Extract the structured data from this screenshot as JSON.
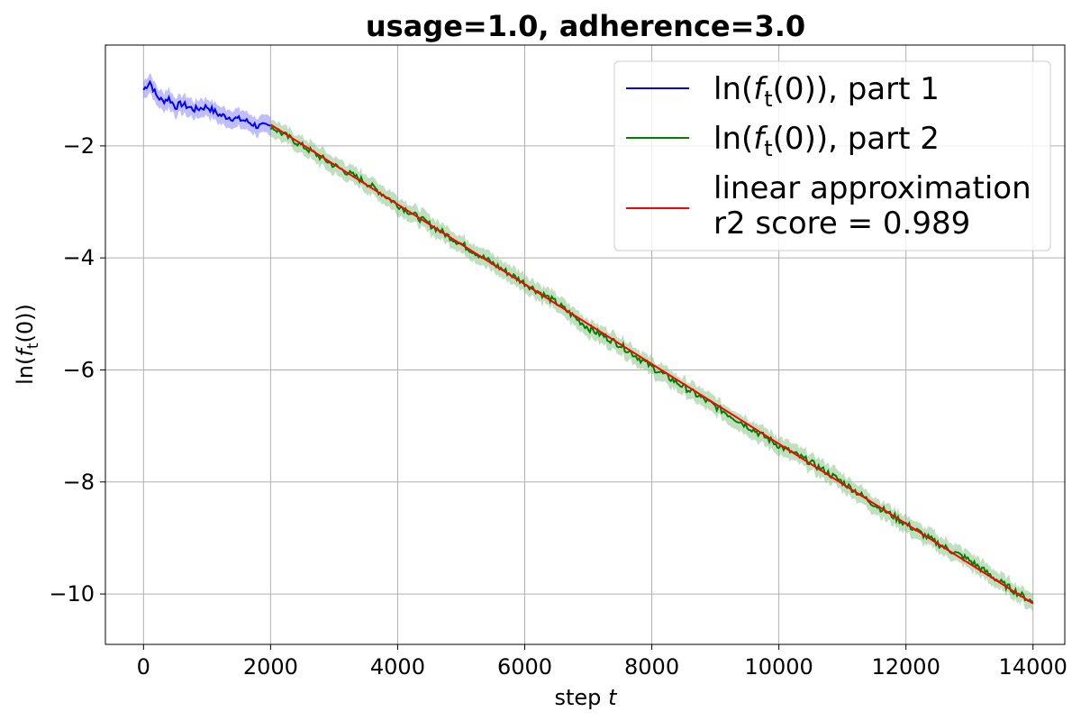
{
  "chart_data": {
    "type": "line",
    "title": "usage=1.0, adherence=3.0",
    "xlabel": "step",
    "xlabel_italic_var": "t",
    "ylabel": "ln(f_t(0))",
    "xlim": [
      -600,
      14500
    ],
    "ylim": [
      -10.9,
      -0.2
    ],
    "xticks": [
      0,
      2000,
      4000,
      6000,
      8000,
      10000,
      12000,
      14000
    ],
    "xtick_labels": [
      "0",
      "2000",
      "4000",
      "6000",
      "8000",
      "10000",
      "12000",
      "14000"
    ],
    "yticks": [
      -2,
      -4,
      -6,
      -8,
      -10
    ],
    "ytick_labels": [
      "−2",
      "−4",
      "−6",
      "−8",
      "−10"
    ],
    "grid": true,
    "legend_position": "top-right",
    "series": [
      {
        "name": "ln(f_t(0)), part 1",
        "color": "#0000ff",
        "band_color": "#8080ff",
        "x": [
          0,
          100,
          200,
          300,
          400,
          500,
          600,
          800,
          1000,
          1200,
          1400,
          1600,
          1800,
          2000
        ],
        "y": [
          -1.0,
          -0.85,
          -1.1,
          -1.2,
          -1.15,
          -1.3,
          -1.25,
          -1.35,
          -1.3,
          -1.45,
          -1.5,
          -1.55,
          -1.65,
          -1.65
        ]
      },
      {
        "name": "ln(f_t(0)), part 2",
        "color": "#008000",
        "band_color": "#7fbf7f",
        "x": [
          2000,
          2500,
          3000,
          3500,
          4000,
          4500,
          5000,
          5500,
          6000,
          6500,
          7000,
          7500,
          8000,
          8500,
          9000,
          9500,
          10000,
          10500,
          11000,
          11500,
          12000,
          12500,
          13000,
          13500,
          14000
        ],
        "y": [
          -1.65,
          -2.0,
          -2.35,
          -2.65,
          -3.05,
          -3.4,
          -3.75,
          -4.1,
          -4.45,
          -4.8,
          -5.25,
          -5.55,
          -5.95,
          -6.3,
          -6.65,
          -7.0,
          -7.35,
          -7.65,
          -8.0,
          -8.4,
          -8.75,
          -9.1,
          -9.4,
          -9.8,
          -10.15
        ]
      },
      {
        "name": "linear approximation\nr2 score = 0.989",
        "color": "#ff0000",
        "x": [
          2000,
          14000
        ],
        "y": [
          -1.62,
          -10.17
        ]
      }
    ],
    "legend": [
      {
        "prefix": "ln(",
        "func": "f",
        "sub": "t",
        "suffix": "(0)), part 1"
      },
      {
        "prefix": "ln(",
        "func": "f",
        "sub": "t",
        "suffix": "(0)), part 2"
      },
      {
        "line1": "linear approximation",
        "line2": "r2 score = 0.989"
      }
    ]
  }
}
